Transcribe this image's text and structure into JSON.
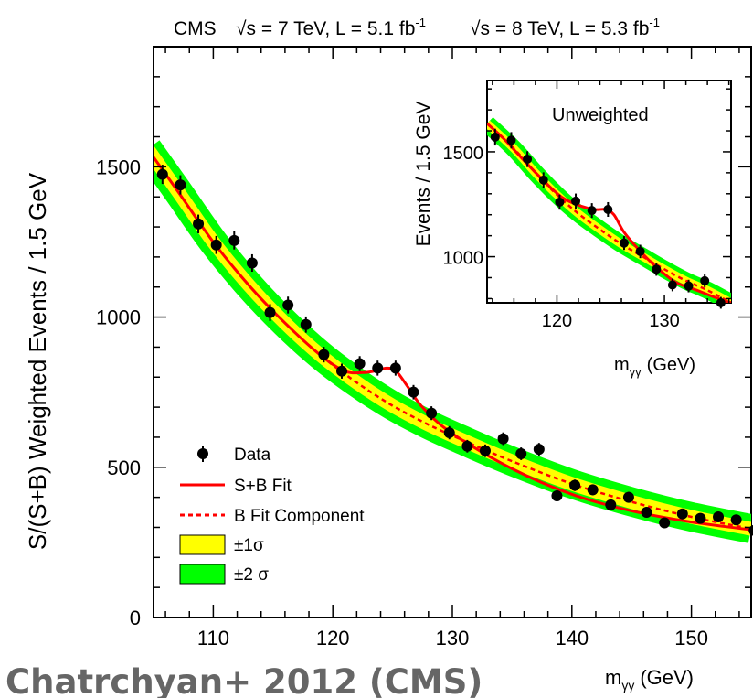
{
  "header": {
    "cms": "CMS",
    "run7": "√s = 7 TeV, L = 5.1 fb",
    "run7_sup": "-1",
    "run8": "√s = 8 TeV, L = 5.3 fb",
    "run8_sup": "-1"
  },
  "caption": "Chatrchyan+ 2012 (CMS)",
  "legend": {
    "data": "Data",
    "sb_fit": "S+B Fit",
    "b_fit": "B Fit Component",
    "sigma1": "±1σ",
    "sigma2": "±2 σ"
  },
  "colors": {
    "sb_fit": "#ff0000",
    "b_fit": "#ff0000",
    "band1": "#ffff00",
    "band2": "#00ff00",
    "data": "#000000"
  },
  "chart_data": [
    {
      "id": "main",
      "type": "scatter",
      "ylabel": "S/(S+B) Weighted Events / 1.5 GeV",
      "xlabel_main": "m",
      "xlabel_sub": "γγ",
      "xlabel_unit": "(GeV)",
      "xlim": [
        105,
        155
      ],
      "ylim": [
        0,
        1900
      ],
      "xticks": [
        110,
        120,
        130,
        140,
        150
      ],
      "yticks": [
        0,
        500,
        1000,
        1500
      ],
      "series": [
        {
          "name": "Data",
          "x": [
            105.75,
            107.25,
            108.75,
            110.25,
            111.75,
            113.25,
            114.75,
            116.25,
            117.75,
            119.25,
            120.75,
            122.25,
            123.75,
            125.25,
            126.75,
            128.25,
            129.75,
            131.25,
            132.75,
            134.25,
            135.75,
            137.25,
            138.75,
            140.25,
            141.75,
            143.25,
            144.75,
            146.25,
            147.75,
            149.25,
            150.75,
            152.25,
            153.75,
            155.25
          ],
          "y": [
            1475,
            1440,
            1310,
            1240,
            1255,
            1180,
            1015,
            1040,
            975,
            875,
            820,
            845,
            830,
            830,
            750,
            680,
            615,
            570,
            555,
            595,
            545,
            560,
            405,
            440,
            425,
            375,
            400,
            350,
            315,
            345,
            330,
            335,
            325,
            290
          ],
          "yerr": [
            32,
            32,
            31,
            30,
            30,
            29,
            28,
            28,
            27,
            26,
            25,
            25,
            25,
            25,
            24,
            23,
            22,
            21,
            21,
            21,
            21,
            21,
            18,
            19,
            18,
            17,
            18,
            17,
            16,
            17,
            16,
            16,
            16,
            15
          ]
        },
        {
          "name": "S+B Fit",
          "x": [
            104.5,
            107,
            110,
            113,
            116,
            119,
            121,
            122.5,
            123.5,
            124.5,
            125.3,
            126.2,
            127.5,
            130,
            135,
            140,
            145,
            150,
            155
          ],
          "y": [
            1560,
            1420,
            1250,
            1105,
            980,
            872,
            820,
            815,
            820,
            830,
            820,
            772,
            700,
            612,
            495,
            410,
            355,
            318,
            292
          ]
        },
        {
          "name": "B Fit Component",
          "x": [
            104.5,
            107,
            110,
            113,
            116,
            119,
            122,
            125,
            128,
            131,
            135,
            140,
            145,
            150,
            155
          ],
          "y": [
            1560,
            1420,
            1250,
            1105,
            980,
            872,
            782,
            705,
            642,
            588,
            520,
            445,
            385,
            335,
            295
          ]
        }
      ],
      "bands": {
        "sigma1_width": 15,
        "sigma2_width": 32
      }
    },
    {
      "id": "inset",
      "type": "scatter",
      "title": "Unweighted",
      "ylabel": "Events / 1.5 GeV",
      "xlabel_main": "m",
      "xlabel_sub": "γγ",
      "xlabel_unit": "(GeV)",
      "xlim": [
        113.5,
        136.2
      ],
      "ylim": [
        780,
        1840
      ],
      "xticks": [
        120,
        130
      ],
      "yticks": [
        1000,
        1500
      ],
      "series": [
        {
          "name": "Data",
          "x": [
            114.25,
            115.75,
            117.25,
            118.75,
            120.25,
            121.75,
            123.25,
            124.75,
            126.25,
            127.75,
            129.25,
            130.75,
            132.25,
            133.75,
            135.25
          ],
          "y": [
            1570,
            1555,
            1465,
            1365,
            1260,
            1265,
            1220,
            1225,
            1065,
            1025,
            940,
            865,
            860,
            885,
            780
          ],
          "yerr": [
            40,
            39,
            38,
            37,
            36,
            36,
            35,
            35,
            33,
            32,
            31,
            30,
            30,
            30,
            28
          ]
        },
        {
          "name": "S+B Fit",
          "x": [
            113.5,
            115,
            117,
            119,
            120.5,
            122,
            123.5,
            124.5,
            125.3,
            126.2,
            127.5,
            129,
            131,
            133,
            135,
            136.2
          ],
          "y": [
            1635,
            1565,
            1455,
            1350,
            1282,
            1245,
            1225,
            1225,
            1200,
            1120,
            1040,
            962,
            880,
            840,
            800,
            780
          ]
        },
        {
          "name": "B Fit Component",
          "x": [
            113.5,
            116,
            118,
            120,
            122,
            124,
            126,
            128,
            130,
            132,
            134,
            136.2
          ],
          "y": [
            1635,
            1515,
            1400,
            1295,
            1205,
            1130,
            1060,
            1000,
            940,
            885,
            840,
            780
          ]
        }
      ],
      "bands": {
        "sigma1_width": 9,
        "sigma2_width": 19
      }
    }
  ]
}
